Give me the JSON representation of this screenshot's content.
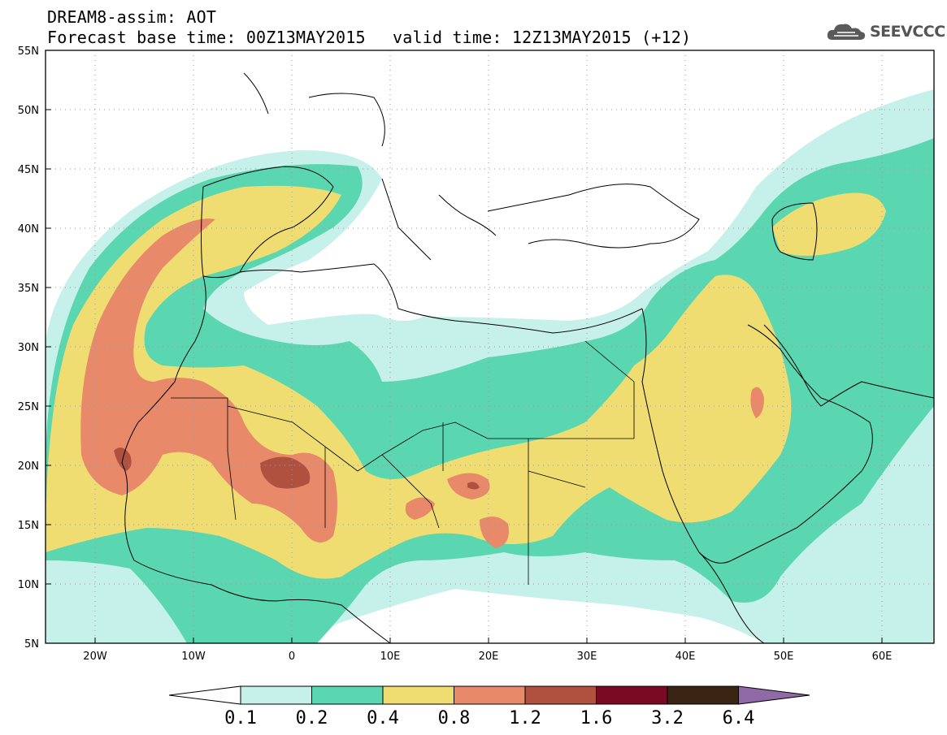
{
  "header": {
    "line1": "DREAM8-assim: AOT",
    "base_time": "Forecast base time: 00Z13MAY2015",
    "valid_time": "valid time: 12Z13MAY2015 (+12)",
    "logo_text": "SEEVCCC"
  },
  "map": {
    "lon_range": [
      -25,
      65
    ],
    "lat_range": [
      5,
      55
    ],
    "lat_ticks": [
      "55N",
      "50N",
      "45N",
      "40N",
      "35N",
      "30N",
      "25N",
      "20N",
      "15N",
      "10N",
      "5N"
    ],
    "lon_ticks": [
      "20W",
      "10W",
      "0",
      "10E",
      "20E",
      "30E",
      "40E",
      "50E",
      "60E"
    ]
  },
  "colorbar": {
    "colors": [
      "#c6f0ea",
      "#5ad7b0",
      "#f0dd72",
      "#e8896a",
      "#b0513f",
      "#7a0a24",
      "#3a2515",
      "#8f6aa6"
    ],
    "levels": [
      "0.1",
      "0.2",
      "0.4",
      "0.8",
      "1.2",
      "1.6",
      "3.2",
      "6.4"
    ]
  }
}
